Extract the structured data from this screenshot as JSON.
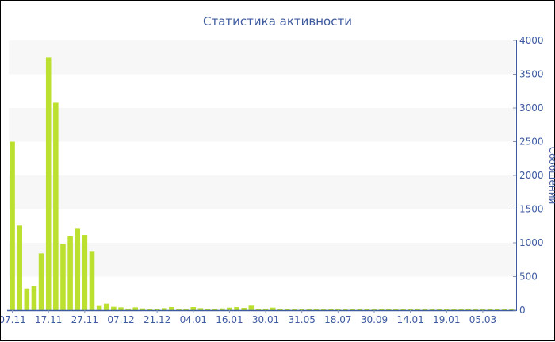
{
  "chart_data": {
    "type": "bar",
    "title": "Статистика активности",
    "ylabel": "Сообщений",
    "xlabel": "",
    "ylim": [
      0,
      4000
    ],
    "yticks": [
      0,
      500,
      1000,
      1500,
      2000,
      2500,
      3000,
      3500,
      4000
    ],
    "y_axis_position": "right",
    "grid": "alternating horizontal bands",
    "bar_color": "#bce030",
    "axis_color": "#3e5aa0",
    "tick_labels": [
      "07.11",
      "17.11",
      "27.11",
      "07.12",
      "21.12",
      "04.01",
      "16.01",
      "30.01",
      "31.05",
      "18.07",
      "30.09",
      "14.01",
      "19.01",
      "05.03"
    ],
    "tick_every_n_bars": 5,
    "values": [
      2500,
      1255,
      321,
      360,
      843,
      3748,
      3077,
      988,
      1094,
      1219,
      1117,
      878,
      63,
      98,
      51,
      43,
      24,
      43,
      27,
      12,
      20,
      31,
      47,
      16,
      16,
      47,
      31,
      20,
      20,
      27,
      39,
      47,
      35,
      67,
      20,
      24,
      39,
      12,
      12,
      10,
      8,
      6,
      6,
      20,
      8,
      6,
      6,
      6,
      6,
      6,
      6,
      6,
      6,
      6,
      6,
      6,
      6,
      6,
      6,
      6,
      6,
      6,
      6,
      6,
      6,
      6,
      6,
      6,
      6,
      6
    ]
  }
}
